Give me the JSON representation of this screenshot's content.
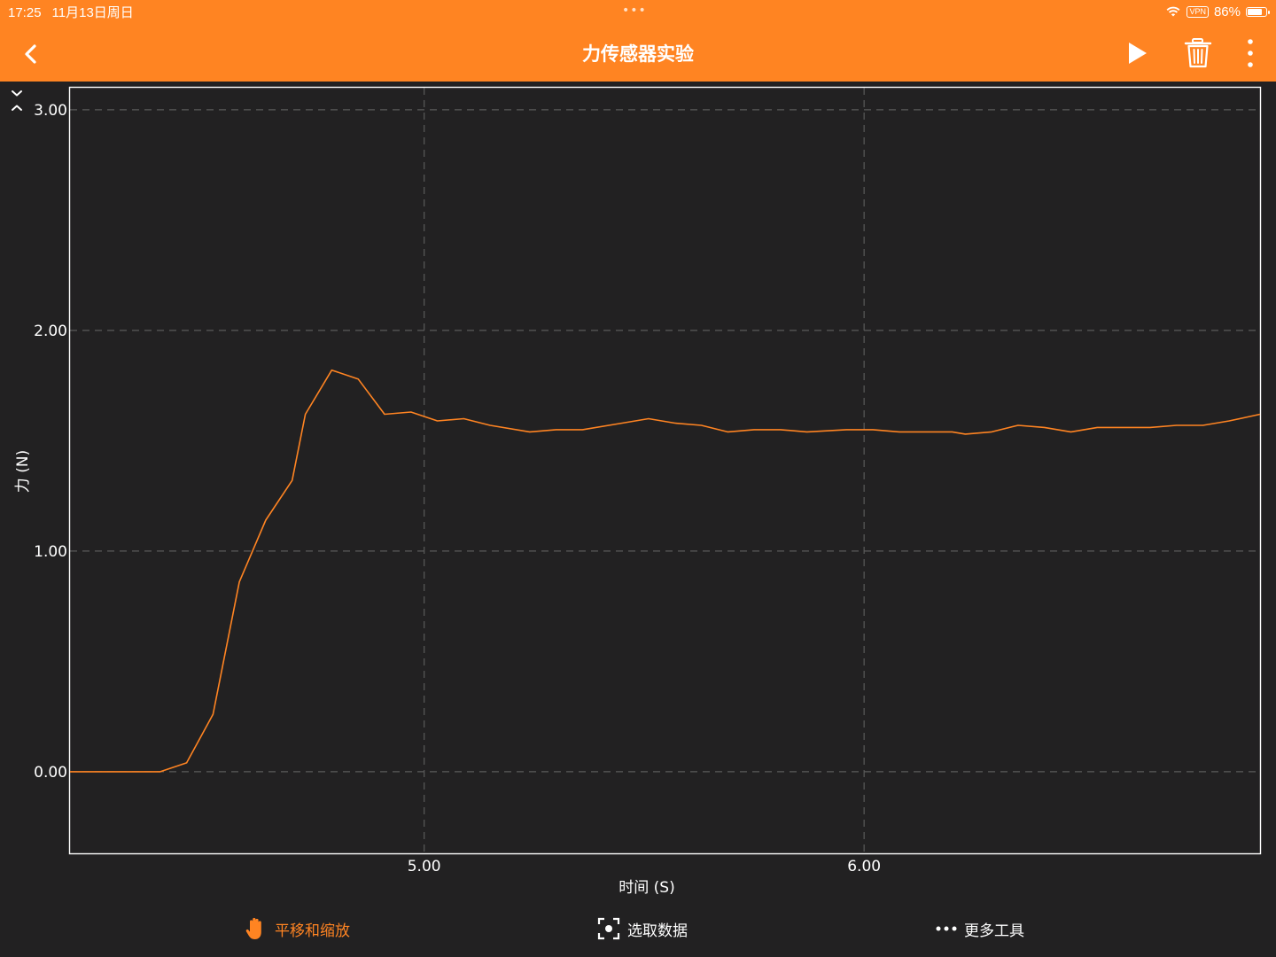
{
  "status_bar": {
    "time": "17:25",
    "date": "11月13日周日",
    "vpn": "VPN",
    "battery": "86%",
    "battery_level": 0.86
  },
  "header": {
    "title": "力传感器实验",
    "background_color": "#FF8422",
    "icons": [
      "back-chevron-icon",
      "play-icon",
      "trash-icon",
      "more-vertical-icon"
    ]
  },
  "chart_data": {
    "type": "line",
    "xlabel": "时间 (S)",
    "ylabel": "力 (N)",
    "xlim": [
      4.195,
      6.9
    ],
    "ylim": [
      -0.37,
      3.1
    ],
    "x_ticks": [
      5.0,
      6.0
    ],
    "x_tick_labels": [
      "5.00",
      "6.00"
    ],
    "y_ticks": [
      0.0,
      1.0,
      2.0,
      3.0
    ],
    "y_tick_labels": [
      "0.00",
      "1.00",
      "2.00",
      "3.00"
    ],
    "grid": true,
    "line_color": "#FF8422",
    "series": [
      {
        "x": [
          4.195,
          4.4,
          4.46,
          4.52,
          4.58,
          4.64,
          4.7,
          4.73,
          4.79,
          4.85,
          4.91,
          4.97,
          5.03,
          5.09,
          5.15,
          5.24,
          5.3,
          5.36,
          5.45,
          5.51,
          5.57,
          5.63,
          5.69,
          5.75,
          5.81,
          5.87,
          5.96,
          6.02,
          6.08,
          6.14,
          6.2,
          6.23,
          6.29,
          6.35,
          6.41,
          6.47,
          6.53,
          6.59,
          6.65,
          6.71,
          6.77,
          6.83,
          6.9
        ],
        "y": [
          0.0,
          0.0,
          0.04,
          0.26,
          0.86,
          1.14,
          1.32,
          1.62,
          1.82,
          1.78,
          1.62,
          1.63,
          1.59,
          1.6,
          1.57,
          1.54,
          1.55,
          1.55,
          1.58,
          1.6,
          1.58,
          1.57,
          1.54,
          1.55,
          1.55,
          1.54,
          1.55,
          1.55,
          1.54,
          1.54,
          1.54,
          1.53,
          1.54,
          1.57,
          1.56,
          1.54,
          1.56,
          1.56,
          1.56,
          1.57,
          1.57,
          1.59,
          1.62
        ]
      }
    ]
  },
  "chart_controls": {
    "icons": [
      "collapse-chevron-icon",
      "expand-chevron-icon"
    ]
  },
  "bottom_toolbar": {
    "pan_zoom_label": "平移和缩放",
    "select_data_label": "选取数据",
    "more_tools_label": "更多工具",
    "active_color": "#FF8422",
    "icons": [
      "hand-icon",
      "select-region-icon",
      "more-dots-icon"
    ]
  }
}
